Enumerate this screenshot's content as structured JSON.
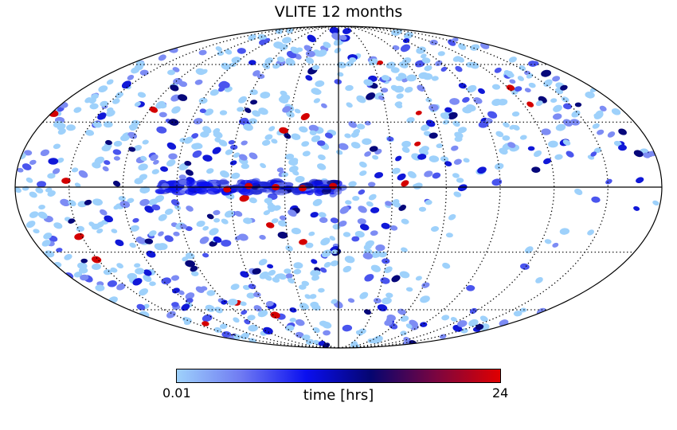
{
  "chart_data": {
    "type": "heatmap",
    "projection": "mollweide",
    "title": "VLITE 12 months",
    "colorbar": {
      "label": "time [hrs]",
      "min_label": "0.01",
      "max_label": "24",
      "range": [
        0.01,
        24
      ],
      "colors": [
        "#9ed1fb",
        "#6f7af2",
        "#0a0ff0",
        "#050570",
        "#7a0540",
        "#e00000"
      ]
    },
    "grid": true,
    "graticule_lines": "dotted",
    "lon_spacing_deg": 30,
    "lat_spacing_deg": 30,
    "features": [
      {
        "name": "galactic-plane-band",
        "lon_range_deg": [
          0,
          100
        ],
        "lat_deg": 0,
        "level": "high"
      },
      {
        "name": "sparse-region",
        "lon_range_deg": [
          -180,
          -70
        ],
        "lat_range_deg": [
          -60,
          10
        ],
        "level": "low"
      }
    ]
  }
}
